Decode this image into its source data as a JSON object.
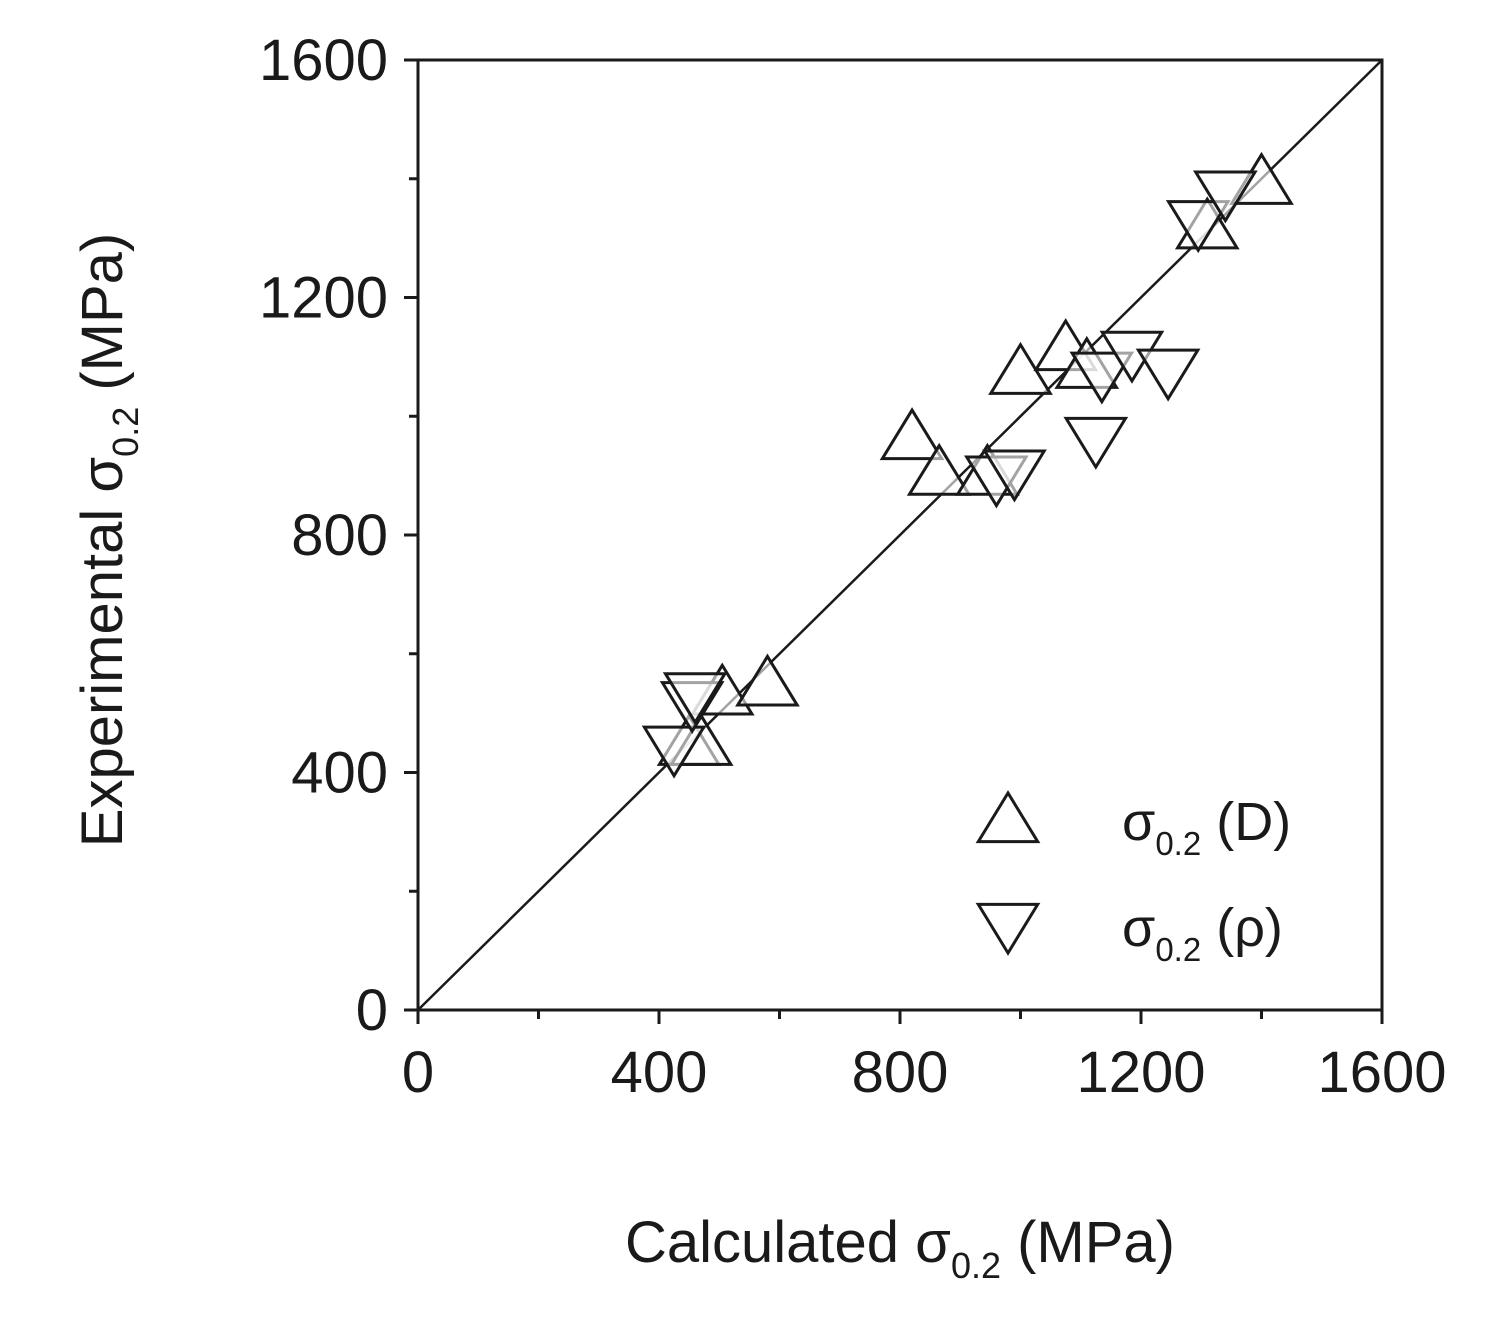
{
  "chart_data": {
    "type": "scatter",
    "title": "",
    "xlabel": {
      "prefix": "Calculated ",
      "symbol": "σ",
      "subscript": "0.2",
      "suffix": " (MPa)"
    },
    "ylabel": {
      "prefix": "Experimental ",
      "symbol": "σ",
      "subscript": "0.2",
      "suffix": " (MPa)"
    },
    "xlim": [
      0,
      1600
    ],
    "ylim": [
      0,
      1600
    ],
    "x_ticks": [
      0,
      400,
      800,
      1200,
      1600
    ],
    "y_ticks": [
      0,
      400,
      800,
      1200,
      1600
    ],
    "x_minor_ticks": [
      200,
      600,
      1000,
      1400
    ],
    "y_minor_ticks": [
      200,
      600,
      1000,
      1400
    ],
    "reference_line": {
      "from": [
        0,
        0
      ],
      "to": [
        1600,
        1600
      ]
    },
    "legend_position": "bottom-right",
    "series": [
      {
        "name": "σ0.2 (D)",
        "label": {
          "symbol": "σ",
          "subscript": "0.2",
          "suffix": " (D)"
        },
        "marker": "triangle-up",
        "points": [
          {
            "x": 450,
            "y": 450
          },
          {
            "x": 470,
            "y": 450
          },
          {
            "x": 505,
            "y": 535
          },
          {
            "x": 580,
            "y": 550
          },
          {
            "x": 820,
            "y": 965
          },
          {
            "x": 865,
            "y": 905
          },
          {
            "x": 945,
            "y": 905
          },
          {
            "x": 1000,
            "y": 1075
          },
          {
            "x": 1075,
            "y": 1115
          },
          {
            "x": 1110,
            "y": 1085
          },
          {
            "x": 1310,
            "y": 1320
          },
          {
            "x": 1400,
            "y": 1395
          }
        ]
      },
      {
        "name": "σ0.2 (ρ)",
        "label": {
          "symbol": "σ",
          "subscript": "0.2",
          "suffix": " (ρ)"
        },
        "marker": "triangle-down",
        "points": [
          {
            "x": 425,
            "y": 440
          },
          {
            "x": 455,
            "y": 515
          },
          {
            "x": 460,
            "y": 530
          },
          {
            "x": 960,
            "y": 895
          },
          {
            "x": 990,
            "y": 905
          },
          {
            "x": 1125,
            "y": 960
          },
          {
            "x": 1135,
            "y": 1070
          },
          {
            "x": 1185,
            "y": 1105
          },
          {
            "x": 1245,
            "y": 1075
          },
          {
            "x": 1295,
            "y": 1325
          },
          {
            "x": 1340,
            "y": 1375
          }
        ]
      }
    ]
  }
}
